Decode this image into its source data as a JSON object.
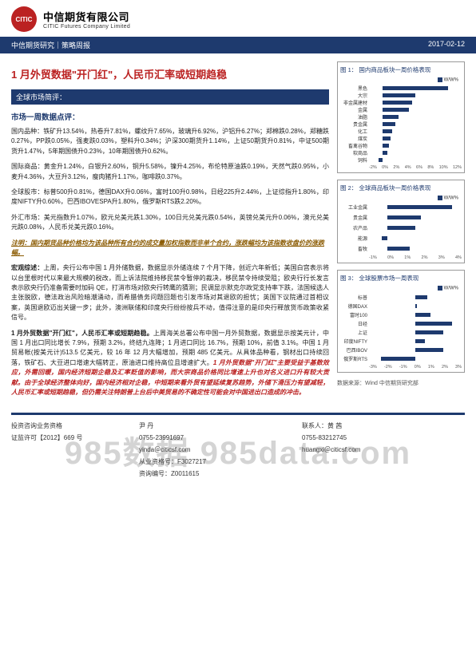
{
  "header": {
    "company_zh": "中信期货有限公司",
    "company_en": "CITIC Futures Company Limited",
    "logo_text": "CITIC"
  },
  "nav": {
    "left": "中信期货研究｜策略周报",
    "right": "2017-02-12"
  },
  "title": "1 月外贸数据\"开门红\"，人民币汇率或短期趋稳",
  "global_section_label": "全球市场简评：",
  "subhead": "市场一周数据点评：",
  "paragraphs": {
    "p1": "国内品种：铁矿升13.54%，热卷升7.81%，螺纹升7.65%，玻璃升6.92%，沪铝升6.27%；郑棉跌0.28%，郑糖跌0.27%，PP跌0.05%，强麦跌0.03%，塑料升0.34%；沪深300期货升1.14%，上证50期货升0.81%，中证500期货升1.47%，5年期国债升0.23%，10年期国债升0.62%。",
    "p2": "国际商品：黄金升1.24%，白银升2.60%，铜升5.58%，镍升4.25%，布伦特原油跌0.19%，天然气跌0.95%，小麦升4.36%，大豆升3.12%，瘦肉猪升1.17%，咖啡跌0.37%。",
    "p3": "全球股市：标普500升0.81%，德国DAX升0.06%，富时100升0.98%，日经225升2.44%，上证综指升1.80%，印度NIFTY升0.60%，巴西IBOVESPA升1.80%，俄罗斯RTS跌2.20%。",
    "p4": "外汇市场：美元指数升1.07%，欧元兑美元跌1.30%，100日元兑美元跌0.54%，英镑兑美元升0.06%，澳元兑美元跌0.08%，人民币兑美元跌0.16%。",
    "note": "注明：国内期货品种价格均为该品种所有合约的成交量加权指数而非单个合约，涨跌幅均为该指数收盘价的涨跌幅。",
    "macro_head": "宏观综述：",
    "p5": "上周，央行公布中国 1 月外储数据，数据显示外储连续 7 个月下降，创近六年新低；美国白宫表示将以台里根时代以来最大规模的税改，而上诉法院维持移民禁令暂停的裁决，移民禁令持续受阻；欧央行行长发言表示欧央行仍准备需要时加码 QE，打消市场对欧央行转鹰的猜测；民调显示默克尔政党支持率下跌，法国候选人主张脱欧，德法政治风险暗潮涌动，而希腊债务问题回题也引发市场对其退欧的担忧；英国下议院通过首相议案，英国退欧迈出关键一步；此外，澳洲联储和印度央行纷纷按兵不动，值得注意的是印央行释放货币政策收紧信号。",
    "p6_head": "1 月外贸数据\"开门红\"，人民币汇率或短期趋稳。",
    "p6": "上周海关总署公布中国一月外贸数据，数据显示按美元计，中国 1 月出口同比增长 7.9%，预期 3.2%，终结九连降；1 月进口同比 16.7%，预期 10%，前值 3.1%。中国 1 月贸易帐(按美元计)513.5 亿美元，较 16 年 12 月大幅增加，预期 485 亿美元。从具体品种看，钢材出口持续回落，铁矿石、大豆进口增速大幅转正，原油进口维持高位且增速扩大。",
    "p6_bold": "1 月外贸数据\"开门红\"主要受益于基数效应，外需回暖，国内经济短期企稳及汇率贬值的影响，而大宗商品价格同比增速上升也对名义进口升有较大贡献。由于全球经济整体向好，国内经济相对企稳，中短期来看外贸有望延续复苏趋势，外储下滑压力有望减轻，人民币汇率或短期趋稳，但仍需关注特朗普上台后中美贸易的不确定性可能会对中国进出口造成的冲击。"
  },
  "charts": {
    "c1": {
      "title": "图 1：    国内商品板块一周价格表现",
      "legend": "W/W%",
      "labels": [
        "黑色",
        "大宗",
        "非金属建材",
        "金属",
        "油脂",
        "贵金属",
        "化工",
        "煤炭",
        "畜禽谷物",
        "软商品",
        "饲料"
      ],
      "values": [
        10,
        5,
        4.5,
        4,
        2.5,
        2,
        1.5,
        1.2,
        1,
        0.8,
        -0.5
      ],
      "xmin": -2,
      "xmax": 12,
      "ticks": [
        "-2%",
        "0%",
        "2%",
        "4%",
        "6%",
        "8%",
        "10%",
        "12%"
      ]
    },
    "c2": {
      "title": "图 2：    全球商品板块一周价格表现",
      "legend": "W/W%",
      "labels": [
        "工业金属",
        "贵金属",
        "农产品",
        "能源",
        "畜牧"
      ],
      "values": [
        3.5,
        1.8,
        1.5,
        -0.3,
        1.2
      ],
      "xmin": -1,
      "xmax": 4,
      "ticks": [
        "-1%",
        "0%",
        "1%",
        "2%",
        "3%",
        "4%"
      ]
    },
    "c3": {
      "title": "图 3：    全球股票市场一周表现",
      "legend": "W/W%",
      "labels": [
        "标普",
        "德国DAX",
        "富时100",
        "日经",
        "上证",
        "印度NIFTY",
        "巴西IBOV",
        "俄罗斯RTS"
      ],
      "values": [
        0.8,
        0.1,
        1.0,
        2.4,
        1.8,
        0.6,
        1.8,
        -2.2
      ],
      "xmin": -3,
      "xmax": 3,
      "ticks": [
        "-3%",
        "-2%",
        "-1%",
        "0%",
        "1%",
        "2%",
        "3%"
      ]
    },
    "source": "数据来源：Wind  中信期货研究部"
  },
  "footer": {
    "qual_label": "投资咨询业务资格",
    "cert": "证监许可【2012】669 号",
    "name1_label": "尹  丹",
    "tel1": "0755-23991697",
    "email1_masked": "yinda＠citicsf.com",
    "etc1": "从业资格号：F3027217",
    "etc2": "资询编号：Z0011615",
    "contact_label": "联系人：黄 茜",
    "tel2": "0755-83212745",
    "email2_masked": "huangxi＠citicsf.com"
  },
  "watermark": "985数据 985data.com",
  "colors": {
    "brand_blue": "#1e3a6e",
    "brand_red": "#b22222"
  }
}
